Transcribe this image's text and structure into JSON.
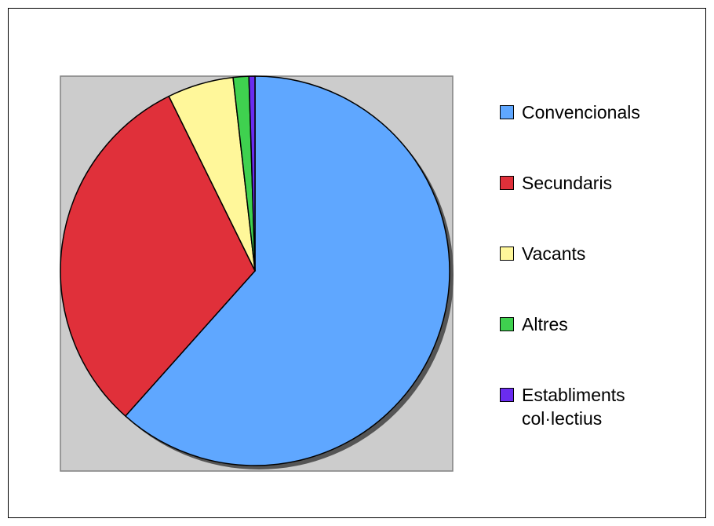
{
  "chart_data": {
    "type": "pie",
    "categories": [
      "Convencionals",
      "Secundaris",
      "Vacants",
      "Altres",
      "Establiments col·lectius"
    ],
    "values": [
      61.6,
      31.1,
      5.5,
      1.3,
      0.5
    ],
    "colors": [
      "#5fa7ff",
      "#e0303a",
      "#fff79a",
      "#3fd14f",
      "#6a2cf0"
    ]
  }
}
